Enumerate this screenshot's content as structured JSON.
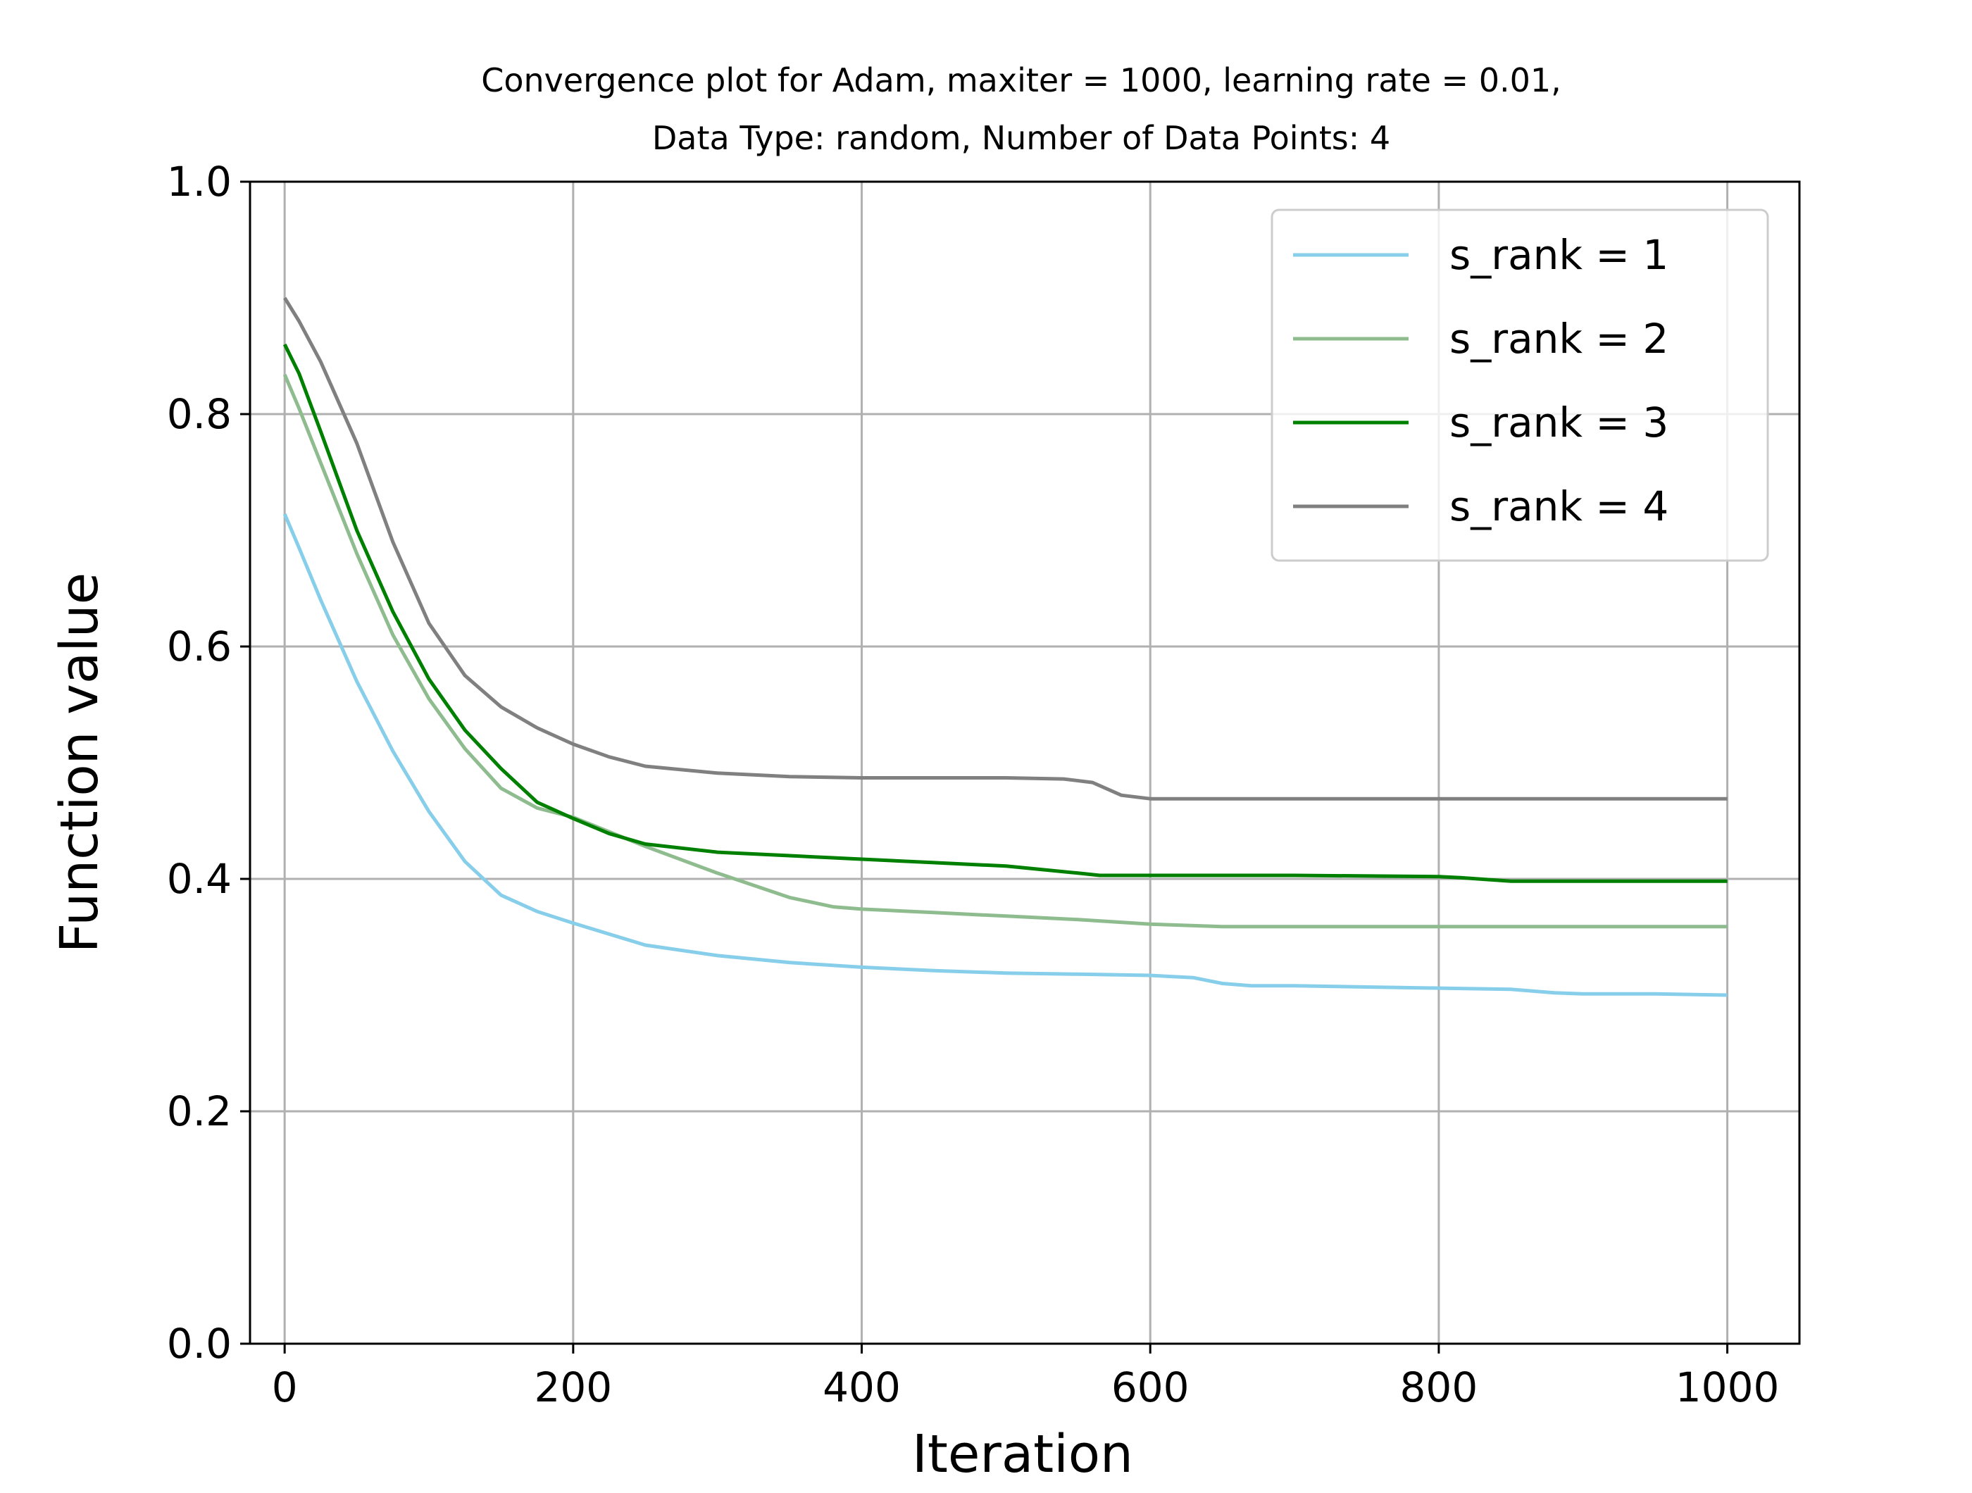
{
  "chart_data": {
    "type": "line",
    "title": "Convergence plot for Adam, maxiter = 1000, learning rate = 0.01,",
    "subtitle": "Data Type: random, Number of Data Points: 4",
    "xlabel": "Iteration",
    "ylabel": "Function value",
    "xlim": [
      -24,
      1050
    ],
    "ylim": [
      0.0,
      1.0
    ],
    "xticks": [
      0,
      200,
      400,
      600,
      800,
      1000
    ],
    "xtick_labels": [
      "0",
      "200",
      "400",
      "600",
      "800",
      "1000"
    ],
    "yticks": [
      0.0,
      0.2,
      0.4,
      0.6,
      0.8,
      1.0
    ],
    "ytick_labels": [
      "0.0",
      "0.2",
      "0.4",
      "0.6",
      "0.8",
      "1.0"
    ],
    "grid": true,
    "legend_position": "top-right",
    "series": [
      {
        "name": "s_rank = 1",
        "color": "#87ceeb",
        "x": [
          0,
          10,
          25,
          50,
          75,
          100,
          125,
          150,
          175,
          200,
          250,
          300,
          350,
          400,
          450,
          500,
          550,
          600,
          630,
          650,
          670,
          700,
          750,
          800,
          850,
          880,
          900,
          950,
          1000
        ],
        "y": [
          0.714,
          0.685,
          0.64,
          0.57,
          0.51,
          0.458,
          0.415,
          0.386,
          0.372,
          0.362,
          0.343,
          0.334,
          0.328,
          0.324,
          0.321,
          0.319,
          0.318,
          0.317,
          0.315,
          0.31,
          0.308,
          0.308,
          0.307,
          0.306,
          0.305,
          0.302,
          0.301,
          0.301,
          0.3
        ]
      },
      {
        "name": "s_rank = 2",
        "color": "#8fbc8f",
        "x": [
          0,
          10,
          25,
          50,
          75,
          100,
          125,
          150,
          175,
          200,
          250,
          300,
          350,
          380,
          400,
          450,
          500,
          550,
          600,
          650,
          700,
          800,
          900,
          1000
        ],
        "y": [
          0.834,
          0.805,
          0.758,
          0.68,
          0.61,
          0.555,
          0.512,
          0.478,
          0.461,
          0.453,
          0.428,
          0.405,
          0.384,
          0.376,
          0.374,
          0.371,
          0.368,
          0.365,
          0.361,
          0.359,
          0.359,
          0.359,
          0.359,
          0.359
        ]
      },
      {
        "name": "s_rank = 3",
        "color": "#008000",
        "x": [
          0,
          10,
          25,
          50,
          75,
          100,
          125,
          150,
          175,
          200,
          225,
          250,
          300,
          350,
          400,
          450,
          500,
          525,
          550,
          565,
          600,
          700,
          800,
          815,
          850,
          900,
          1000
        ],
        "y": [
          0.86,
          0.835,
          0.785,
          0.7,
          0.63,
          0.572,
          0.528,
          0.495,
          0.466,
          0.452,
          0.439,
          0.43,
          0.423,
          0.42,
          0.417,
          0.414,
          0.411,
          0.408,
          0.405,
          0.403,
          0.403,
          0.403,
          0.402,
          0.401,
          0.398,
          0.398,
          0.398
        ]
      },
      {
        "name": "s_rank = 4",
        "color": "#808080",
        "x": [
          0,
          10,
          25,
          50,
          75,
          100,
          125,
          150,
          175,
          200,
          225,
          250,
          300,
          350,
          400,
          450,
          500,
          540,
          560,
          580,
          600,
          700,
          800,
          900,
          1000
        ],
        "y": [
          0.9,
          0.88,
          0.845,
          0.775,
          0.69,
          0.62,
          0.575,
          0.548,
          0.53,
          0.516,
          0.505,
          0.497,
          0.491,
          0.488,
          0.487,
          0.487,
          0.487,
          0.486,
          0.483,
          0.472,
          0.469,
          0.469,
          0.469,
          0.469,
          0.469
        ]
      }
    ]
  }
}
